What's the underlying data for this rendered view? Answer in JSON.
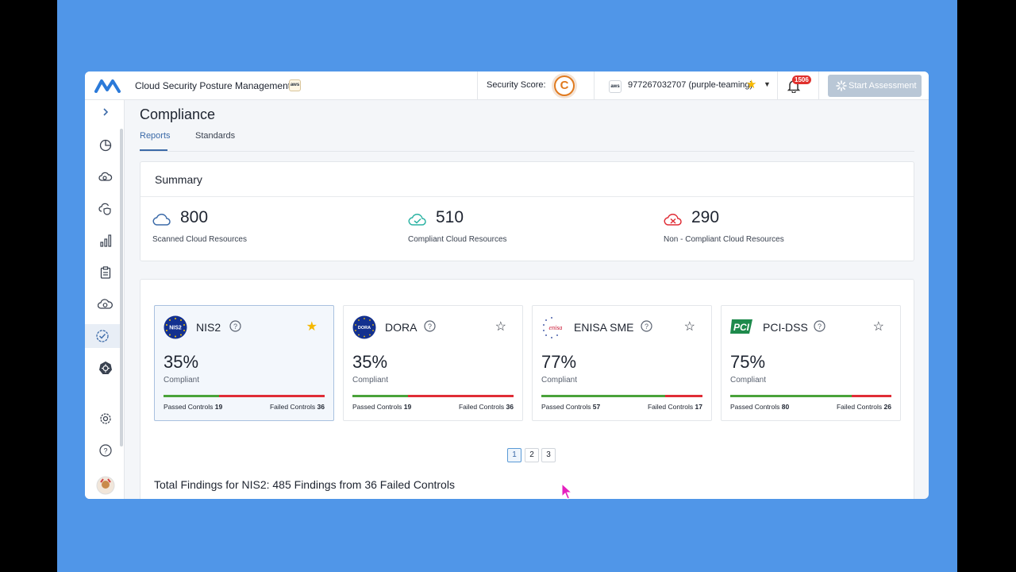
{
  "app": {
    "title": "Cloud Security Posture Management",
    "aws_badge": "aws"
  },
  "topbar": {
    "security_score_label": "Security Score:",
    "security_score_grade": "C",
    "account_provider": "aws",
    "account_name": "977267032707 (purple-teaming)",
    "notification_count": "1506",
    "start_assessment_label": "Start Assessment"
  },
  "page": {
    "title": "Compliance",
    "tabs": [
      {
        "label": "Reports",
        "active": true
      },
      {
        "label": "Standards",
        "active": false
      }
    ]
  },
  "summary": {
    "title": "Summary",
    "stats": [
      {
        "value": "800",
        "label": "Scanned Cloud Resources",
        "icon": "cloud-icon",
        "color": "#3b6aa8"
      },
      {
        "value": "510",
        "label": "Compliant Cloud Resources",
        "icon": "cloud-check-icon",
        "color": "#2bb3a3"
      },
      {
        "value": "290",
        "label": "Non - Compliant Cloud Resources",
        "icon": "cloud-x-icon",
        "color": "#e02d36"
      }
    ]
  },
  "standards": [
    {
      "name": "NIS2",
      "logo_text": "NIS2",
      "percent": "35%",
      "compliant_fraction": 0.345,
      "compliant_label": "Compliant",
      "passed_label": "Passed Controls",
      "passed": "19",
      "failed_label": "Failed Controls",
      "failed": "36",
      "favorite": true,
      "selected": true
    },
    {
      "name": "DORA",
      "logo_text": "DORA",
      "percent": "35%",
      "compliant_fraction": 0.345,
      "compliant_label": "Compliant",
      "passed_label": "Passed Controls",
      "passed": "19",
      "failed_label": "Failed Controls",
      "failed": "36",
      "favorite": false,
      "selected": false
    },
    {
      "name": "ENISA SME",
      "logo_text": "enisa",
      "percent": "77%",
      "compliant_fraction": 0.77,
      "compliant_label": "Compliant",
      "passed_label": "Passed Controls",
      "passed": "57",
      "failed_label": "Failed Controls",
      "failed": "17",
      "favorite": false,
      "selected": false
    },
    {
      "name": "PCI-DSS",
      "logo_text": "PCI",
      "percent": "75%",
      "compliant_fraction": 0.755,
      "compliant_label": "Compliant",
      "passed_label": "Passed Controls",
      "passed": "80",
      "failed_label": "Failed Controls",
      "failed": "26",
      "favorite": false,
      "selected": false
    }
  ],
  "pagination": {
    "pages": [
      "1",
      "2",
      "3"
    ],
    "current": "1"
  },
  "findings_text": "Total Findings for NIS2: 485 Findings from 36 Failed Controls",
  "colors": {
    "accent": "#3b6aa8",
    "pass": "#4aa33a",
    "fail": "#e02d36",
    "favorite": "#f5b800",
    "background": "#5096e8"
  }
}
